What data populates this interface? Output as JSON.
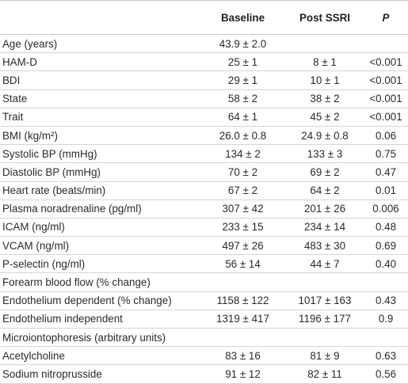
{
  "table": {
    "headers": {
      "label": "",
      "baseline": "Baseline",
      "post": "Post SSRI",
      "p": "P"
    },
    "rows": [
      {
        "label": "Age (years)",
        "baseline": "43.9 ± 2.0",
        "post": "",
        "p": ""
      },
      {
        "label": "HAM-D",
        "baseline": "25 ± 1",
        "post": "8 ± 1",
        "p": "<0.001"
      },
      {
        "label": "BDI",
        "baseline": "29 ± 1",
        "post": "10 ± 1",
        "p": "<0.001"
      },
      {
        "label": "State",
        "baseline": "58 ± 2",
        "post": "38 ± 2",
        "p": "<0.001"
      },
      {
        "label": "Trait",
        "baseline": "64 ± 1",
        "post": "45 ± 2",
        "p": "<0.001"
      },
      {
        "label": "BMI (kg/m²)",
        "baseline": "26.0 ± 0.8",
        "post": "24.9 ± 0.8",
        "p": "0.06"
      },
      {
        "label": "Systolic BP (mmHg)",
        "baseline": "134 ± 2",
        "post": "133 ± 3",
        "p": "0.75"
      },
      {
        "label": "Diastolic BP (mmHg)",
        "baseline": "70 ± 2",
        "post": "69 ± 2",
        "p": "0.47"
      },
      {
        "label": "Heart rate (beats/min)",
        "baseline": "67 ± 2",
        "post": "64 ± 2",
        "p": "0.01"
      },
      {
        "label": "Plasma noradrenaline (pg/ml)",
        "baseline": "307 ± 42",
        "post": "201 ± 26",
        "p": "0.006"
      },
      {
        "label": "ICAM (ng/ml)",
        "baseline": "233 ± 15",
        "post": "234 ± 14",
        "p": "0.48"
      },
      {
        "label": "VCAM (ng/ml)",
        "baseline": "497 ± 26",
        "post": "483 ± 30",
        "p": "0.69"
      },
      {
        "label": "P-selectin (ng/ml)",
        "baseline": "56 ± 14",
        "post": "44 ± 7",
        "p": "0.40"
      },
      {
        "label": "Forearm blood flow (% change)",
        "baseline": "",
        "post": "",
        "p": ""
      },
      {
        "label": "Endothelium dependent (% change)",
        "baseline": "1158 ± 122",
        "post": "1017 ± 163",
        "p": "0.43"
      },
      {
        "label": "Endothelium independent",
        "baseline": "1319 ± 417",
        "post": "1196 ± 177",
        "p": "0.9"
      },
      {
        "label": "Microiontophoresis (arbitrary units)",
        "baseline": "",
        "post": "",
        "p": ""
      },
      {
        "label": "Acetylcholine",
        "baseline": "83 ± 16",
        "post": "81 ± 9",
        "p": "0.63"
      },
      {
        "label": "Sodium nitroprusside",
        "baseline": "91 ± 12",
        "post": "82 ± 11",
        "p": "0.56"
      }
    ]
  }
}
